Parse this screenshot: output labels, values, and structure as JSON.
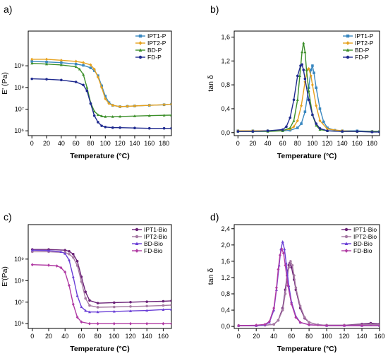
{
  "chart_data": [
    {
      "panel_label": "a)",
      "type": "line",
      "xlabel": "Temperature (°C)",
      "ylabel": "E' (Pa)",
      "xlim": [
        -5,
        190
      ],
      "ylim": [
        600000,
        40000000000
      ],
      "yscale": "log",
      "xticks": [
        "0",
        "20",
        "40",
        "60",
        "80",
        "100",
        "120",
        "140",
        "160",
        "180"
      ],
      "yticks": [
        {
          "v": 1000000,
          "label": "10⁶"
        },
        {
          "v": 10000000,
          "label": "10⁷"
        },
        {
          "v": 100000000,
          "label": "10⁸"
        },
        {
          "v": 1000000000,
          "label": "10⁹"
        }
      ],
      "grid": false,
      "legend_position": "top-right",
      "series": [
        {
          "name": "IPT1-P",
          "color": "#3a88c0",
          "marker": "square",
          "x": [
            0,
            20,
            40,
            60,
            70,
            80,
            85,
            90,
            95,
            100,
            105,
            110,
            120,
            130,
            140,
            160,
            180,
            190
          ],
          "y": [
            1600000000,
            1500000000,
            1400000000,
            1200000000,
            1050000000,
            800000000,
            600000000,
            350000000,
            120000000,
            40000000,
            20000000,
            15000000,
            13000000,
            13500000,
            14000000,
            15000000,
            16000000,
            17000000
          ]
        },
        {
          "name": "IPT2-P",
          "color": "#e6a21f",
          "marker": "diamond",
          "x": [
            0,
            20,
            40,
            60,
            70,
            80,
            85,
            90,
            95,
            100,
            105,
            110,
            120,
            130,
            140,
            160,
            180,
            190
          ],
          "y": [
            2000000000,
            2000000000,
            1800000000,
            1600000000,
            1400000000,
            1100000000,
            700000000,
            300000000,
            100000000,
            30000000,
            18000000,
            15000000,
            13000000,
            13500000,
            14000000,
            15000000,
            16000000,
            17000000
          ]
        },
        {
          "name": "BD-P",
          "color": "#3c8f2a",
          "marker": "triangle",
          "x": [
            0,
            20,
            40,
            60,
            65,
            70,
            75,
            80,
            85,
            90,
            95,
            100,
            110,
            120,
            140,
            160,
            180,
            190
          ],
          "y": [
            1300000000,
            1200000000,
            1100000000,
            900000000,
            700000000,
            400000000,
            100000000,
            20000000,
            8000000,
            5500000,
            4800000,
            4500000,
            4500000,
            4600000,
            4800000,
            5000000,
            5200000,
            5300000
          ]
        },
        {
          "name": "FD-P",
          "color": "#1f2a8f",
          "marker": "circle",
          "x": [
            0,
            20,
            40,
            60,
            70,
            75,
            80,
            85,
            90,
            95,
            100,
            110,
            120,
            140,
            160,
            180,
            190
          ],
          "y": [
            250000000,
            240000000,
            220000000,
            180000000,
            130000000,
            70000000,
            18000000,
            5000000,
            2500000,
            1700000,
            1500000,
            1400000,
            1400000,
            1350000,
            1300000,
            1300000,
            1300000
          ]
        }
      ]
    },
    {
      "panel_label": "b)",
      "type": "line",
      "xlabel": "Temperature (°C)",
      "ylabel": "tan δ",
      "xlim": [
        -5,
        190
      ],
      "ylim": [
        -0.05,
        1.7
      ],
      "xticks": [
        "0",
        "20",
        "40",
        "60",
        "80",
        "100",
        "120",
        "140",
        "160",
        "180"
      ],
      "yticks": [
        {
          "v": 0,
          "label": "0,0"
        },
        {
          "v": 0.4,
          "label": "0,4"
        },
        {
          "v": 0.8,
          "label": "0,8"
        },
        {
          "v": 1.2,
          "label": "1,2"
        },
        {
          "v": 1.6,
          "label": "1,6"
        }
      ],
      "grid": false,
      "legend_position": "top-right",
      "series": [
        {
          "name": "IPT1-P",
          "color": "#3a88c0",
          "marker": "square",
          "x": [
            0,
            20,
            40,
            60,
            70,
            80,
            85,
            90,
            95,
            98,
            100,
            102,
            105,
            110,
            115,
            120,
            130,
            140,
            160,
            180,
            190
          ],
          "y": [
            0.03,
            0.03,
            0.03,
            0.03,
            0.04,
            0.08,
            0.15,
            0.35,
            0.75,
            1.05,
            1.12,
            1.0,
            0.75,
            0.4,
            0.18,
            0.08,
            0.04,
            0.03,
            0.03,
            0.02,
            0.02
          ]
        },
        {
          "name": "IPT2-P",
          "color": "#e6a21f",
          "marker": "diamond",
          "x": [
            0,
            20,
            40,
            60,
            70,
            75,
            80,
            85,
            90,
            93,
            95,
            98,
            100,
            105,
            110,
            120,
            140,
            160,
            180,
            190
          ],
          "y": [
            0.03,
            0.03,
            0.03,
            0.04,
            0.06,
            0.1,
            0.2,
            0.45,
            0.85,
            1.05,
            1.07,
            0.95,
            0.8,
            0.45,
            0.2,
            0.06,
            0.03,
            0.02,
            0.02,
            0.02
          ]
        },
        {
          "name": "BD-P",
          "color": "#3c8f2a",
          "marker": "triangle",
          "x": [
            0,
            20,
            40,
            60,
            70,
            75,
            80,
            83,
            86,
            88,
            90,
            92,
            95,
            100,
            105,
            110,
            120,
            140,
            160,
            180,
            190
          ],
          "y": [
            0.02,
            0.02,
            0.02,
            0.03,
            0.08,
            0.2,
            0.55,
            0.95,
            1.35,
            1.5,
            1.35,
            1.05,
            0.7,
            0.3,
            0.12,
            0.05,
            0.03,
            0.02,
            0.02,
            0.02,
            0.02
          ]
        },
        {
          "name": "FD-P",
          "color": "#1f2a8f",
          "marker": "circle",
          "x": [
            0,
            20,
            40,
            60,
            65,
            70,
            75,
            80,
            84,
            86,
            88,
            90,
            95,
            100,
            105,
            110,
            120,
            140,
            160,
            180,
            190
          ],
          "y": [
            0.02,
            0.02,
            0.03,
            0.05,
            0.1,
            0.25,
            0.55,
            0.95,
            1.12,
            1.14,
            1.05,
            0.9,
            0.55,
            0.3,
            0.15,
            0.07,
            0.03,
            0.02,
            0.02,
            0.01,
            0.01
          ]
        }
      ]
    },
    {
      "panel_label": "c)",
      "type": "line",
      "xlabel": "Temperature (°C)",
      "ylabel": "E'(Pa)",
      "xlim": [
        -5,
        170
      ],
      "ylim": [
        600000,
        40000000000
      ],
      "yscale": "log",
      "xticks": [
        "0",
        "20",
        "40",
        "60",
        "80",
        "100",
        "120",
        "140",
        "160"
      ],
      "yticks": [
        {
          "v": 1000000,
          "label": "10⁶"
        },
        {
          "v": 10000000,
          "label": "10⁷"
        },
        {
          "v": 100000000,
          "label": "10⁸"
        },
        {
          "v": 1000000000,
          "label": "10⁹"
        }
      ],
      "grid": false,
      "legend_position": "top-right",
      "series": [
        {
          "name": "IPT1-Bio",
          "color": "#6b2277",
          "marker": "circle",
          "x": [
            0,
            20,
            40,
            45,
            50,
            55,
            60,
            65,
            70,
            80,
            100,
            120,
            140,
            160,
            170
          ],
          "y": [
            2800000000,
            2800000000,
            2600000000,
            2300000000,
            1700000000,
            800000000,
            150000000,
            30000000,
            12000000,
            9000000,
            9500000,
            10000000,
            10500000,
            11000000,
            11500000
          ]
        },
        {
          "name": "IPT2-Bio",
          "color": "#a67aa3",
          "marker": "circle",
          "x": [
            0,
            20,
            40,
            45,
            50,
            55,
            60,
            65,
            70,
            80,
            100,
            120,
            140,
            160,
            170
          ],
          "y": [
            2200000000,
            2200000000,
            2000000000,
            1700000000,
            1200000000,
            500000000,
            90000000,
            15000000,
            7000000,
            5800000,
            6000000,
            6300000,
            6600000,
            7000000,
            7300000
          ]
        },
        {
          "name": "BD-Bio",
          "color": "#6a3fd6",
          "marker": "triangle",
          "x": [
            0,
            20,
            35,
            40,
            45,
            50,
            55,
            60,
            65,
            70,
            80,
            100,
            120,
            140,
            160,
            170
          ],
          "y": [
            2600000000,
            2500000000,
            2200000000,
            1800000000,
            900000000,
            150000000,
            20000000,
            6000000,
            4000000,
            3500000,
            3500000,
            3700000,
            3900000,
            4100000,
            4500000,
            4600000
          ]
        },
        {
          "name": "FD-Bio",
          "color": "#b03aa3",
          "marker": "diamond",
          "x": [
            0,
            20,
            30,
            35,
            40,
            45,
            50,
            55,
            60,
            70,
            80,
            100,
            120,
            140,
            160,
            170
          ],
          "y": [
            550000000,
            520000000,
            480000000,
            400000000,
            250000000,
            60000000,
            8000000,
            2000000,
            1200000,
            1000000,
            1000000,
            1000000,
            1000000,
            1000000,
            1000000,
            1000000
          ]
        }
      ]
    },
    {
      "panel_label": "d)",
      "type": "line",
      "xlabel": "Temperature (°C)",
      "ylabel": "tan δ",
      "xlim": [
        -5,
        160
      ],
      "ylim": [
        -0.05,
        2.5
      ],
      "xticks": [
        "0",
        "20",
        "40",
        "60",
        "80",
        "100",
        "120",
        "140",
        "160"
      ],
      "yticks": [
        {
          "v": 0,
          "label": "0,0"
        },
        {
          "v": 0.4,
          "label": "0,4"
        },
        {
          "v": 0.8,
          "label": "0,8"
        },
        {
          "v": 1.2,
          "label": "1,2"
        },
        {
          "v": 1.6,
          "label": "1,6"
        },
        {
          "v": 2.0,
          "label": "2,0"
        },
        {
          "v": 2.4,
          "label": "2,4"
        }
      ],
      "grid": false,
      "legend_position": "top-right",
      "series": [
        {
          "name": "IPT1-Bio",
          "color": "#6b2277",
          "marker": "circle",
          "x": [
            0,
            20,
            30,
            40,
            45,
            50,
            53,
            55,
            57,
            58,
            60,
            63,
            65,
            70,
            75,
            80,
            90,
            100,
            120,
            140,
            150,
            160
          ],
          "y": [
            0.02,
            0.02,
            0.03,
            0.05,
            0.15,
            0.45,
            0.9,
            1.25,
            1.5,
            1.55,
            1.45,
            1.15,
            0.9,
            0.45,
            0.2,
            0.1,
            0.04,
            0.03,
            0.03,
            0.06,
            0.08,
            0.06
          ]
        },
        {
          "name": "IPT2-Bio",
          "color": "#a67aa3",
          "marker": "circle",
          "x": [
            0,
            20,
            30,
            40,
            45,
            50,
            53,
            55,
            57,
            59,
            61,
            63,
            65,
            70,
            75,
            80,
            90,
            100,
            120,
            140,
            150,
            160
          ],
          "y": [
            0.02,
            0.02,
            0.03,
            0.05,
            0.15,
            0.4,
            0.8,
            1.15,
            1.45,
            1.6,
            1.5,
            1.25,
            0.95,
            0.5,
            0.22,
            0.1,
            0.04,
            0.03,
            0.03,
            0.04,
            0.05,
            0.04
          ]
        },
        {
          "name": "BD-Bio",
          "color": "#6a3fd6",
          "marker": "triangle",
          "x": [
            0,
            20,
            30,
            35,
            40,
            43,
            46,
            48,
            50,
            52,
            54,
            57,
            60,
            65,
            70,
            80,
            100,
            120,
            140,
            160
          ],
          "y": [
            0.02,
            0.02,
            0.04,
            0.1,
            0.4,
            0.9,
            1.5,
            1.9,
            2.08,
            1.9,
            1.55,
            1.0,
            0.6,
            0.25,
            0.1,
            0.04,
            0.02,
            0.02,
            0.02,
            0.02
          ]
        },
        {
          "name": "FD-Bio",
          "color": "#b03aa3",
          "marker": "diamond",
          "x": [
            0,
            20,
            30,
            35,
            40,
            43,
            45,
            47,
            49,
            51,
            53,
            56,
            60,
            65,
            70,
            80,
            100,
            120,
            140,
            160
          ],
          "y": [
            0.02,
            0.03,
            0.05,
            0.12,
            0.45,
            0.95,
            1.4,
            1.75,
            1.9,
            1.8,
            1.5,
            1.0,
            0.55,
            0.22,
            0.1,
            0.04,
            0.02,
            0.02,
            0.02,
            0.02
          ]
        }
      ]
    }
  ]
}
